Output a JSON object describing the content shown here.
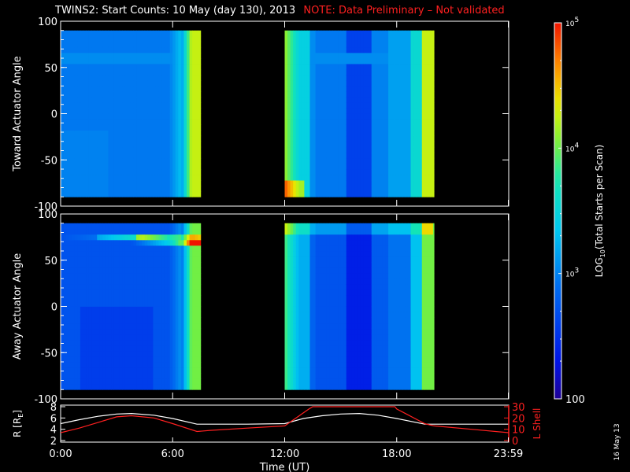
{
  "title": {
    "main": "TWINS2: Start Counts: 10 May (day 130), 2013",
    "note": "NOTE: Data Preliminary – Not validated",
    "note_color": "#ff2020"
  },
  "stamp": "16 May 13",
  "chart_data": [
    {
      "type": "heatmap",
      "name": "toward",
      "ylabel": "Toward Actuator Angle",
      "ylim": [
        -100,
        100
      ],
      "yticks": [
        -100,
        -50,
        0,
        50,
        100
      ],
      "angle_range": [
        -90,
        90
      ],
      "time_range_hours": [
        0,
        24
      ],
      "data_intervals_hours": [
        [
          0.0,
          7.5
        ],
        [
          12.0,
          20.0
        ]
      ],
      "bright_bands": [
        {
          "angle_low": 55,
          "angle_high": 68,
          "description_level": 3.05
        }
      ],
      "color_scale": "log10",
      "zlim": [
        100,
        100000
      ]
    },
    {
      "type": "heatmap",
      "name": "away",
      "ylabel": "Away Actuator Angle",
      "ylim": [
        -100,
        100
      ],
      "yticks": [
        -100,
        -50,
        0,
        50,
        100
      ],
      "angle_range": [
        -90,
        90
      ],
      "time_range_hours": [
        0,
        24
      ],
      "data_intervals_hours": [
        [
          0.0,
          7.5
        ],
        [
          12.0,
          20.0
        ]
      ],
      "bright_bands": [
        {
          "angle_low": 64,
          "angle_high": 80,
          "description_level": 4.4
        }
      ],
      "color_scale": "log10",
      "zlim": [
        100,
        100000
      ]
    },
    {
      "type": "line",
      "name": "orbit",
      "xlabel": "Time (UT)",
      "xticks": [
        "0:00",
        "6:00",
        "12:00",
        "18:00",
        "23:59"
      ],
      "xtick_hours": [
        0,
        6,
        12,
        18,
        23.98
      ],
      "y_left": {
        "label": "R [R",
        "label_sub": "E",
        "label_end": "]",
        "ticks": [
          2,
          4,
          6,
          8
        ],
        "lim": [
          2,
          8
        ],
        "color": "#ffffff"
      },
      "y_right": {
        "label": "L Shell",
        "ticks": [
          0,
          10,
          20,
          30
        ],
        "lim": [
          0,
          30
        ],
        "color": "#ff2020"
      },
      "series": [
        {
          "axis": "left",
          "color": "#ffffff",
          "x": [
            0,
            1,
            2,
            3,
            3.8,
            5,
            6,
            7.3,
            8,
            10,
            12,
            13,
            14,
            15,
            16,
            17,
            18,
            19.5,
            20,
            22,
            24
          ],
          "y": [
            5.0,
            5.7,
            6.3,
            6.7,
            6.8,
            6.5,
            5.9,
            4.9,
            4.9,
            4.9,
            5.0,
            5.9,
            6.4,
            6.7,
            6.8,
            6.5,
            5.9,
            4.9,
            4.9,
            4.9,
            4.9
          ]
        },
        {
          "axis": "right",
          "color": "#ff2020",
          "x": [
            0,
            1,
            2,
            3,
            3.8,
            5,
            6,
            7.3,
            8,
            10,
            12,
            13.3,
            13.5,
            17.9,
            18,
            19.5,
            20,
            22,
            24
          ],
          "y": [
            7,
            11,
            16,
            21,
            22,
            20,
            15,
            8,
            9,
            11,
            13,
            28,
            30,
            30,
            28,
            15,
            13,
            10,
            7
          ]
        }
      ]
    }
  ],
  "colorbar": {
    "label_prefix": "LOG",
    "label_sub": "10",
    "label_suffix": "(Total Starts per Scan)",
    "ticks": [
      {
        "value": 100,
        "text": "100",
        "base": "",
        "exp": ""
      },
      {
        "value": 1000,
        "text": "",
        "base": "10",
        "exp": "3"
      },
      {
        "value": 10000,
        "text": "",
        "base": "10",
        "exp": "4"
      },
      {
        "value": 100000,
        "text": "",
        "base": "10",
        "exp": "5"
      }
    ]
  }
}
